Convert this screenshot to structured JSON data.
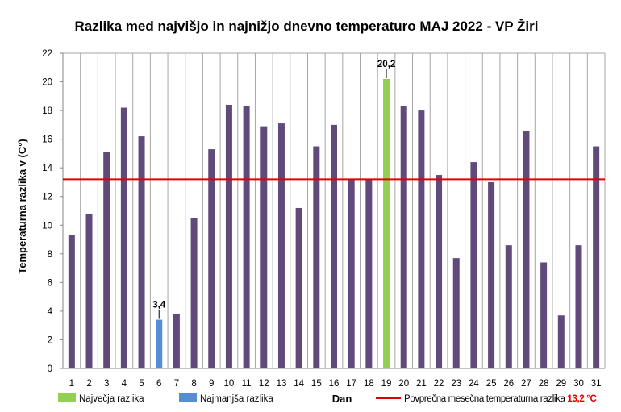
{
  "chart_data": {
    "type": "bar",
    "title": "Razlika med najvišjo  in najnižjo  dnevno  temperaturo  MAJ 2022 - VP Žiri",
    "xlabel": "Dan",
    "ylabel": "Temperaturna razlika v (C°)",
    "ylim": [
      0,
      22
    ],
    "yticks": [
      "0",
      "2",
      "4",
      "6",
      "8",
      "10",
      "12",
      "14",
      "16",
      "18",
      "20",
      "22"
    ],
    "grid": "vertical",
    "categories": [
      "1",
      "2",
      "3",
      "4",
      "5",
      "6",
      "7",
      "8",
      "9",
      "10",
      "11",
      "12",
      "13",
      "14",
      "15",
      "16",
      "17",
      "18",
      "19",
      "20",
      "21",
      "22",
      "23",
      "24",
      "25",
      "26",
      "27",
      "28",
      "29",
      "30",
      "31"
    ],
    "values": [
      9.3,
      10.8,
      15.1,
      18.2,
      16.2,
      3.4,
      3.8,
      10.5,
      15.3,
      18.4,
      18.3,
      16.9,
      17.1,
      11.2,
      15.5,
      17.0,
      13.2,
      13.2,
      20.2,
      18.3,
      18.0,
      13.5,
      7.7,
      14.4,
      13.0,
      8.6,
      16.6,
      7.4,
      3.7,
      8.6,
      15.5
    ],
    "max_index": 18,
    "min_index": 5,
    "max_label": "20,2",
    "min_label": "3,4",
    "average": 13.2,
    "colors": {
      "default": "#604A7B",
      "max": "#92D050",
      "min": "#558ED5",
      "average_line": "#E00000",
      "grid": "#A6A6A6",
      "axis": "#868686"
    },
    "legend": {
      "max_label": "Največja razlika",
      "min_label": "Najmanjša razlika",
      "avg_label": "Povprečna mesečna temperaturna razlika",
      "avg_value": "13,2 °C"
    }
  }
}
